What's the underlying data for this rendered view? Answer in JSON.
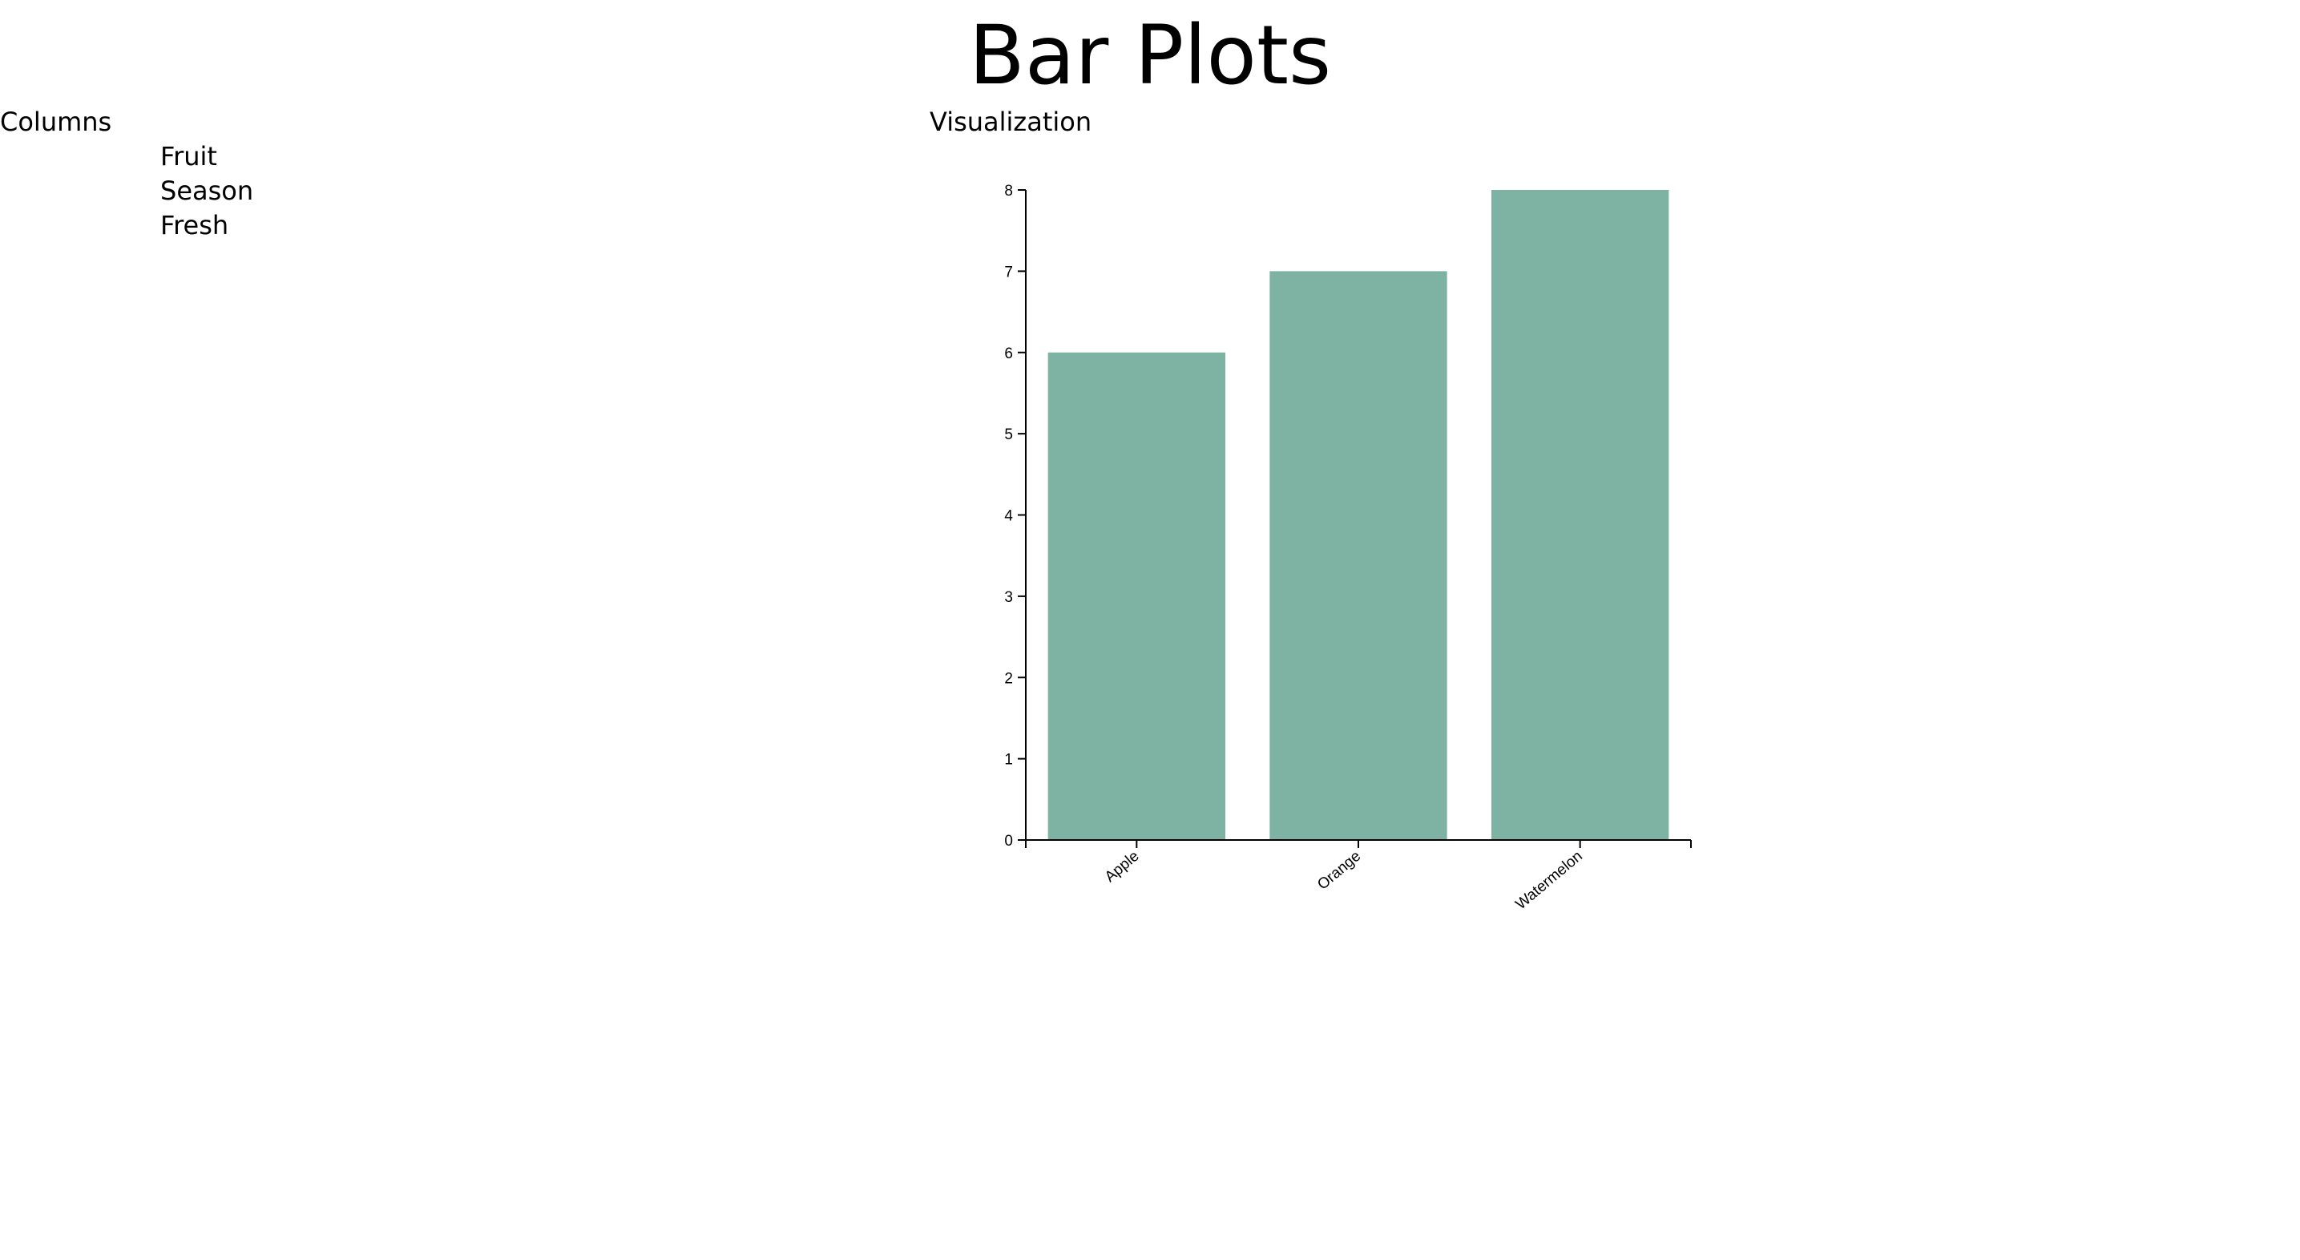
{
  "page": {
    "title": "Bar Plots"
  },
  "columns": {
    "heading": "Columns",
    "items": [
      "Fruit",
      "Season",
      "Fresh"
    ]
  },
  "visualization": {
    "heading": "Visualization"
  },
  "chart_data": {
    "type": "bar",
    "categories": [
      "Apple",
      "Orange",
      "Watermelon"
    ],
    "values": [
      6,
      7,
      8
    ],
    "title": "",
    "xlabel": "",
    "ylabel": "",
    "ylim": [
      0,
      8
    ],
    "yticks": [
      0,
      1,
      2,
      3,
      4,
      5,
      6,
      7,
      8
    ],
    "grid": false,
    "bar_color": "#7eb2a3",
    "axis_color": "#000000"
  }
}
